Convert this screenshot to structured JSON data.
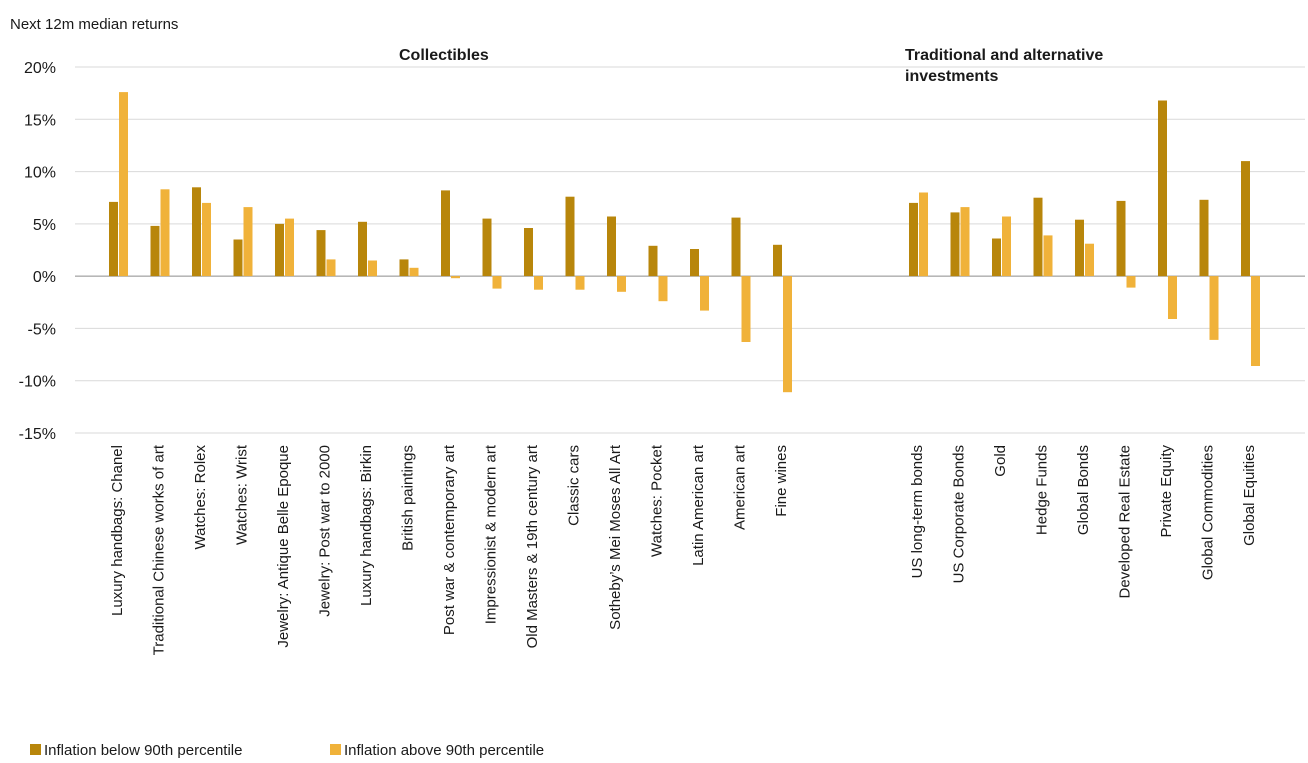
{
  "chart_data": {
    "type": "bar",
    "ylabel": "Next 12m median returns",
    "ylim": [
      -15,
      20
    ],
    "yticks": [
      20,
      15,
      10,
      5,
      0,
      -5,
      -10,
      -15
    ],
    "ytick_labels": [
      "20%",
      "15%",
      "10%",
      "5%",
      "0%",
      "-5%",
      "-10%",
      "-15%"
    ],
    "grid": true,
    "legend_position": "bottom-left",
    "groups": [
      {
        "label": "Collectibles",
        "start": 0,
        "end": 16
      },
      {
        "label_lines": [
          "Traditional and alternative",
          "investments"
        ],
        "start": 17,
        "end": 25
      }
    ],
    "categories": [
      "Luxury handbags: Chanel",
      "Traditional Chinese works of art",
      "Watches: Rolex",
      "Watches: Wrist",
      "Jewelry: Antique Belle Epoque",
      "Jewelry: Post war to 2000",
      "Luxury handbags: Birkin",
      "British paintings",
      "Post war & contemporary art",
      "Impressionist & modern art",
      "Old Masters & 19th century art",
      "Classic cars",
      "Sotheby’s Mei Moses All Art",
      "Watches: Pocket",
      "Latin American art",
      "American art",
      "Fine wines",
      "US long-term bonds",
      "US Corporate Bonds",
      "Gold",
      "Hedge Funds",
      "Global Bonds",
      "Developed Real Estate",
      "Private Equity",
      "Global Commodities",
      "Global Equities"
    ],
    "series": [
      {
        "name": "Inflation below 90th percentile",
        "color": "#b8860b",
        "values": [
          7.1,
          4.8,
          8.5,
          3.5,
          5.0,
          4.4,
          5.2,
          1.6,
          8.2,
          5.5,
          4.6,
          7.6,
          5.7,
          2.9,
          2.6,
          5.6,
          3.0,
          7.0,
          6.1,
          3.6,
          7.5,
          5.4,
          7.2,
          16.8,
          7.3,
          11.0
        ]
      },
      {
        "name": "Inflation above 90th percentile",
        "color": "#f0b23a",
        "values": [
          17.6,
          8.3,
          7.0,
          6.6,
          5.5,
          1.6,
          1.5,
          0.8,
          -0.2,
          -1.2,
          -1.3,
          -1.3,
          -1.5,
          -2.4,
          -3.3,
          -6.3,
          -11.1,
          8.0,
          6.6,
          5.7,
          3.9,
          3.1,
          -1.1,
          -4.1,
          -6.1,
          -8.6
        ]
      }
    ]
  }
}
